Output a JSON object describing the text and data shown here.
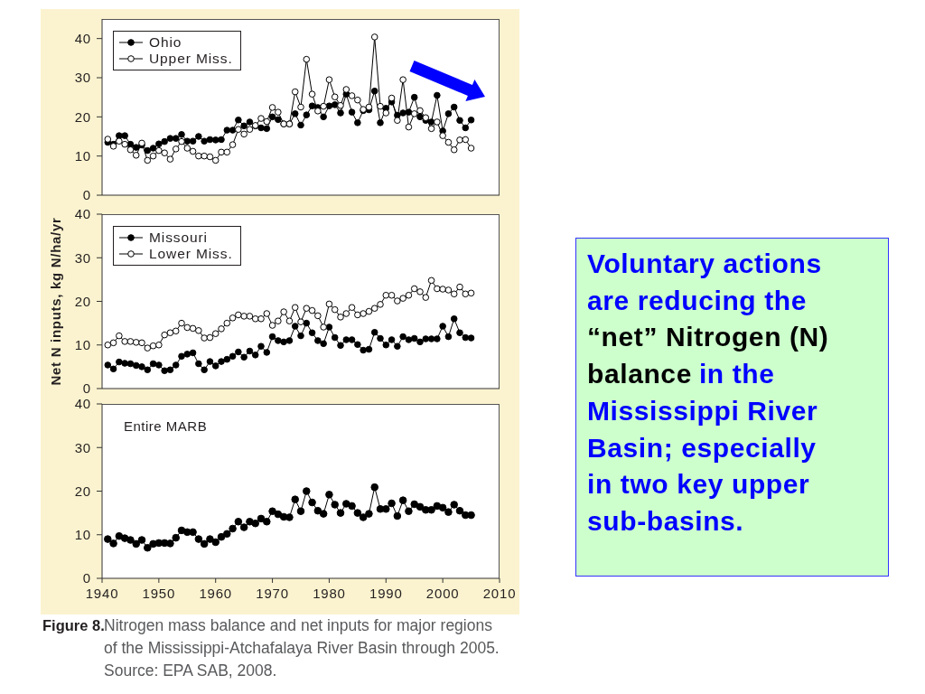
{
  "chart_data": [
    {
      "type": "line",
      "x": [
        1941,
        1942,
        1943,
        1944,
        1945,
        1946,
        1947,
        1948,
        1949,
        1950,
        1951,
        1952,
        1953,
        1954,
        1955,
        1956,
        1957,
        1958,
        1959,
        1960,
        1961,
        1962,
        1963,
        1964,
        1965,
        1966,
        1967,
        1968,
        1969,
        1970,
        1971,
        1972,
        1973,
        1974,
        1975,
        1976,
        1977,
        1978,
        1979,
        1980,
        1981,
        1982,
        1983,
        1984,
        1985,
        1986,
        1987,
        1988,
        1989,
        1990,
        1991,
        1992,
        1993,
        1994,
        1995,
        1996,
        1997,
        1998,
        1999,
        2000,
        2001,
        2002,
        2003,
        2004,
        2005
      ],
      "series": [
        {
          "name": "Ohio",
          "color": "#000000",
          "values": [
            13.5,
            13.0,
            15.2,
            15.2,
            13.0,
            12.2,
            12.8,
            11.4,
            12.0,
            13.1,
            13.7,
            14.5,
            14.5,
            15.5,
            13.8,
            13.8,
            15.0,
            13.8,
            14.2,
            14.1,
            14.2,
            16.6,
            16.6,
            19.2,
            17.7,
            18.7,
            17.7,
            17.2,
            17.0,
            20.0,
            19.3,
            18.2,
            18.2,
            20.8,
            17.9,
            20.5,
            22.8,
            22.4,
            20.0,
            22.8,
            23.1,
            21.0,
            25.8,
            21.2,
            18.5,
            21.6,
            21.8,
            26.6,
            18.5,
            22.2,
            23.8,
            20.4,
            21.0,
            21.2,
            25.0,
            20.0,
            19.1,
            18.7,
            25.5,
            16.4,
            20.8,
            22.5,
            19.1,
            17.2,
            19.2
          ]
        },
        {
          "name": "Upper Miss.",
          "color": "#000000",
          "values": [
            14.3,
            12.5,
            13.8,
            13.0,
            11.6,
            10.2,
            13.3,
            8.9,
            10.0,
            11.4,
            10.8,
            9.2,
            11.8,
            13.7,
            12.0,
            11.2,
            10.0,
            10.0,
            9.8,
            8.9,
            11.0,
            11.0,
            12.9,
            16.8,
            15.6,
            16.8,
            17.8,
            19.6,
            18.8,
            22.4,
            21.2,
            18.2,
            18.2,
            26.4,
            22.5,
            34.7,
            25.8,
            21.5,
            22.7,
            29.5,
            25.1,
            22.9,
            27.0,
            25.4,
            24.3,
            21.9,
            22.5,
            40.4,
            22.7,
            21.0,
            24.8,
            19.1,
            29.5,
            17.4,
            20.8,
            21.6,
            19.8,
            17.0,
            18.7,
            15.2,
            13.5,
            11.6,
            14.1,
            14.2,
            12.0
          ]
        }
      ],
      "xlim": [
        1940,
        2010
      ],
      "xticks": [
        1940,
        1950,
        1960,
        1970,
        1980,
        1990,
        2000,
        2010
      ],
      "ylim": [
        0,
        45
      ],
      "yticks": [
        0,
        10,
        20,
        30,
        40
      ],
      "tick_labels": "y",
      "legend": "top left",
      "marker": "circle"
    },
    {
      "type": "line",
      "ylabel": "Net N inputs, kg N/ha/yr",
      "x": [
        1941,
        1942,
        1943,
        1944,
        1945,
        1946,
        1947,
        1948,
        1949,
        1950,
        1951,
        1952,
        1953,
        1954,
        1955,
        1956,
        1957,
        1958,
        1959,
        1960,
        1961,
        1962,
        1963,
        1964,
        1965,
        1966,
        1967,
        1968,
        1969,
        1970,
        1971,
        1972,
        1973,
        1974,
        1975,
        1976,
        1977,
        1978,
        1979,
        1980,
        1981,
        1982,
        1983,
        1984,
        1985,
        1986,
        1987,
        1988,
        1989,
        1990,
        1991,
        1992,
        1993,
        1994,
        1995,
        1996,
        1997,
        1998,
        1999,
        2000,
        2001,
        2002,
        2003,
        2004,
        2005
      ],
      "series": [
        {
          "name": "Missouri",
          "color": "#000000",
          "values": [
            5.4,
            4.5,
            6.1,
            5.8,
            5.7,
            5.3,
            5.0,
            4.3,
            5.7,
            5.4,
            4.1,
            4.3,
            5.4,
            7.4,
            7.9,
            8.2,
            5.7,
            4.3,
            6.2,
            5.2,
            6.2,
            6.7,
            7.4,
            8.4,
            7.2,
            8.6,
            7.7,
            9.7,
            8.3,
            11.9,
            11.0,
            10.7,
            11.0,
            14.3,
            12.1,
            15.0,
            12.8,
            11.0,
            10.3,
            14.1,
            11.7,
            9.9,
            11.2,
            11.2,
            10.1,
            8.8,
            9.0,
            12.9,
            11.5,
            10.0,
            11.2,
            9.7,
            11.9,
            11.2,
            11.5,
            10.7,
            11.4,
            11.4,
            11.4,
            14.3,
            11.9,
            16.0,
            12.8,
            11.7,
            11.6
          ]
        },
        {
          "name": "Lower Miss.",
          "color": "#000000",
          "values": [
            10.0,
            10.5,
            12.1,
            10.8,
            10.8,
            10.6,
            10.5,
            9.3,
            9.8,
            10.0,
            12.3,
            12.8,
            13.2,
            15.0,
            14.0,
            13.8,
            13.3,
            11.6,
            11.7,
            12.6,
            13.7,
            15.0,
            16.2,
            16.9,
            16.6,
            16.6,
            16.0,
            16.0,
            17.2,
            14.5,
            15.5,
            17.6,
            15.5,
            18.6,
            15.3,
            18.4,
            17.9,
            16.7,
            14.1,
            19.4,
            18.1,
            16.4,
            17.2,
            18.6,
            16.9,
            17.2,
            17.7,
            18.4,
            19.3,
            21.4,
            21.4,
            20.1,
            20.7,
            21.4,
            22.9,
            22.2,
            20.9,
            24.8,
            22.9,
            22.8,
            22.6,
            21.7,
            23.3,
            21.7,
            21.9
          ]
        }
      ],
      "xlim": [
        1940,
        2010
      ],
      "xticks": [
        1940,
        1950,
        1960,
        1970,
        1980,
        1990,
        2000,
        2010
      ],
      "ylim": [
        0,
        40
      ],
      "yticks": [
        0,
        10,
        20,
        30,
        40
      ],
      "tick_labels": "y",
      "legend": "top left",
      "marker": "circle"
    },
    {
      "type": "line",
      "title": "Entire MARB",
      "x": [
        1941,
        1942,
        1943,
        1944,
        1945,
        1946,
        1947,
        1948,
        1949,
        1950,
        1951,
        1952,
        1953,
        1954,
        1955,
        1956,
        1957,
        1958,
        1959,
        1960,
        1961,
        1962,
        1963,
        1964,
        1965,
        1966,
        1967,
        1968,
        1969,
        1970,
        1971,
        1972,
        1973,
        1974,
        1975,
        1976,
        1977,
        1978,
        1979,
        1980,
        1981,
        1982,
        1983,
        1984,
        1985,
        1986,
        1987,
        1988,
        1989,
        1990,
        1991,
        1992,
        1993,
        1994,
        1995,
        1996,
        1997,
        1998,
        1999,
        2000,
        2001,
        2002,
        2003,
        2004,
        2005
      ],
      "series": [
        {
          "color": "#000000",
          "values": [
            9.0,
            8.0,
            9.7,
            9.2,
            8.8,
            7.9,
            8.8,
            7.0,
            7.9,
            8.1,
            8.1,
            8.0,
            9.3,
            11.0,
            10.6,
            10.6,
            9.0,
            7.9,
            9.0,
            8.3,
            9.5,
            10.2,
            11.4,
            13.0,
            11.7,
            13.0,
            12.6,
            13.7,
            13.0,
            15.4,
            14.7,
            14.1,
            14.0,
            18.1,
            15.4,
            20.0,
            17.4,
            15.5,
            14.8,
            19.2,
            16.9,
            15.0,
            17.1,
            16.6,
            15.0,
            14.0,
            14.8,
            20.9,
            15.9,
            15.9,
            17.2,
            14.3,
            17.9,
            15.4,
            17.0,
            16.4,
            15.7,
            15.7,
            16.6,
            16.2,
            15.2,
            16.9,
            15.5,
            14.5,
            14.5
          ]
        }
      ],
      "xlim": [
        1940,
        2010
      ],
      "xticks": [
        1940,
        1950,
        1960,
        1970,
        1980,
        1990,
        2000,
        2010
      ],
      "ylim": [
        0,
        40
      ],
      "yticks": [
        0,
        10,
        20,
        30,
        40
      ],
      "marker": "circle",
      "annotations": [
        "Figure 8.",
        "Nitrogen mass balance and net inputs for major regions of the Mississippi-Atchafalaya River Basin through 2005.",
        "Source: EPA SAB, 2008."
      ]
    },
    {
      "type": "other",
      "annotations": [
        "Voluntary actions",
        "are reducing the",
        "“net” Nitrogen (N)",
        "balance",
        "in the",
        "Mississippi River",
        "Basin; especially",
        "in two key upper",
        "sub-basins."
      ]
    }
  ]
}
